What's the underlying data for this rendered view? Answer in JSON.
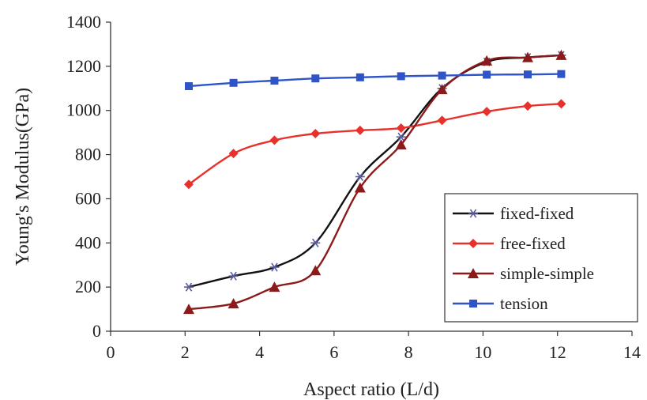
{
  "chart_data": {
    "type": "line",
    "xlabel": "Aspect ratio (L/d)",
    "ylabel": "Young's Modulus(GPa)",
    "xlim": [
      0,
      14
    ],
    "ylim": [
      0,
      1400
    ],
    "xticks": [
      "0",
      "2",
      "4",
      "6",
      "8",
      "10",
      "12",
      "14"
    ],
    "yticks": [
      "0",
      "200",
      "400",
      "600",
      "800",
      "1000",
      "1200",
      "1400"
    ],
    "grid": false,
    "legend_position": "bottom-right",
    "series": [
      {
        "name": "fixed-fixed",
        "color": "#111111",
        "marker": "star",
        "marker_color": "#5a5a9e",
        "x": [
          2.1,
          3.3,
          4.4,
          5.5,
          6.7,
          7.8,
          8.9,
          10.1,
          11.2,
          12.1
        ],
        "y": [
          200,
          250,
          290,
          400,
          700,
          880,
          1100,
          1220,
          1240,
          1250
        ]
      },
      {
        "name": "free-fixed",
        "color": "#e8312a",
        "marker": "diamond",
        "marker_color": "#e8312a",
        "x": [
          2.1,
          3.3,
          4.4,
          5.5,
          6.7,
          7.8,
          8.9,
          10.1,
          11.2,
          12.1
        ],
        "y": [
          665,
          805,
          865,
          895,
          910,
          920,
          955,
          995,
          1020,
          1030
        ]
      },
      {
        "name": "simple-simple",
        "color": "#8b1a1a",
        "marker": "triangle",
        "marker_color": "#8b1a1a",
        "x": [
          2.1,
          3.3,
          4.4,
          5.5,
          6.7,
          7.8,
          8.9,
          10.1,
          11.2,
          12.1
        ],
        "y": [
          100,
          125,
          200,
          275,
          650,
          845,
          1095,
          1225,
          1240,
          1250
        ]
      },
      {
        "name": "tension",
        "color": "#2e54c8",
        "marker": "square",
        "marker_color": "#2e54c8",
        "x": [
          2.1,
          3.3,
          4.4,
          5.5,
          6.7,
          7.8,
          8.9,
          10.1,
          11.2,
          12.1
        ],
        "y": [
          1110,
          1125,
          1135,
          1145,
          1150,
          1155,
          1158,
          1162,
          1163,
          1165
        ]
      }
    ]
  }
}
